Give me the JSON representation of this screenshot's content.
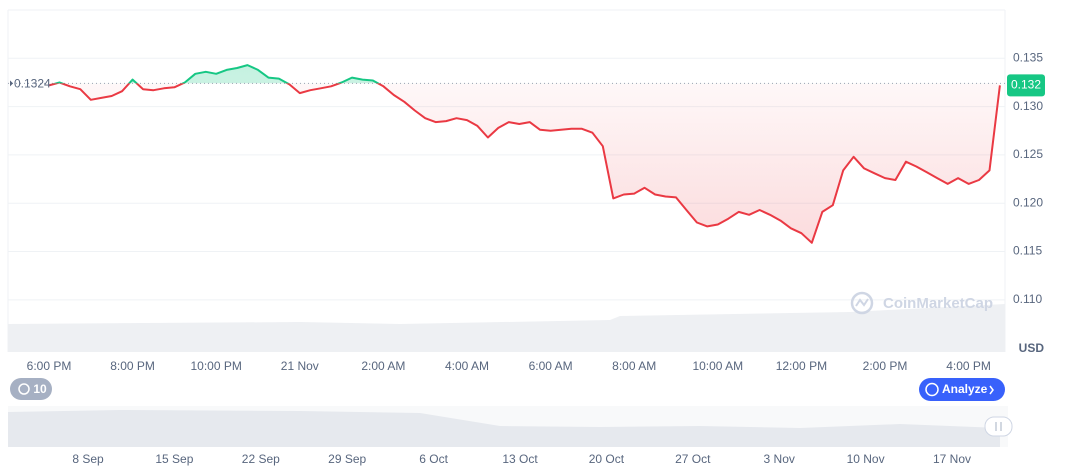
{
  "chart_data": {
    "type": "line",
    "categories": [
      "6:00 PM",
      null,
      null,
      null,
      null,
      null,
      null,
      null,
      "8:00 PM",
      null,
      null,
      null,
      null,
      null,
      null,
      null,
      "10:00 PM",
      null,
      null,
      null,
      null,
      null,
      null,
      null,
      "21 Nov",
      null,
      null,
      null,
      null,
      null,
      null,
      null,
      "2:00 AM",
      null,
      null,
      null,
      null,
      null,
      null,
      null,
      "4:00 AM",
      null,
      null,
      null,
      null,
      null,
      null,
      null,
      "6:00 AM",
      null,
      null,
      null,
      null,
      null,
      null,
      null,
      "8:00 AM",
      null,
      null,
      null,
      null,
      null,
      null,
      null,
      "10:00 AM",
      null,
      null,
      null,
      null,
      null,
      null,
      null,
      "12:00 PM",
      null,
      null,
      null,
      null,
      null,
      null,
      null,
      "2:00 PM",
      null,
      null,
      null,
      null,
      null,
      null,
      null,
      "4:00 PM",
      null,
      null,
      null
    ],
    "values": [
      0.1322,
      0.1325,
      0.1321,
      0.1318,
      0.1307,
      0.1309,
      0.1311,
      0.1316,
      0.1328,
      0.1318,
      0.1317,
      0.1319,
      0.132,
      0.1325,
      0.1334,
      0.1336,
      0.1334,
      0.1338,
      0.134,
      0.1343,
      0.1338,
      0.133,
      0.1329,
      0.1323,
      0.1314,
      0.1317,
      0.1319,
      0.1321,
      0.1325,
      0.133,
      0.1328,
      0.1327,
      0.1321,
      0.1312,
      0.1305,
      0.1296,
      0.1288,
      0.1284,
      0.1285,
      0.1288,
      0.1286,
      0.128,
      0.1268,
      0.1278,
      0.1284,
      0.1282,
      0.1284,
      0.1276,
      0.1275,
      0.1276,
      0.1277,
      0.1277,
      0.1273,
      0.1259,
      0.1205,
      0.1209,
      0.121,
      0.1216,
      0.1209,
      0.1207,
      0.1206,
      0.1193,
      0.118,
      0.1176,
      0.1178,
      0.1184,
      0.1191,
      0.1188,
      0.1193,
      0.1188,
      0.1182,
      0.1174,
      0.1169,
      0.1159,
      0.1191,
      0.1198,
      0.1234,
      0.1248,
      0.1236,
      0.1231,
      0.1226,
      0.1224,
      0.1243,
      0.1238,
      0.1232,
      0.1226,
      0.122,
      0.1226,
      0.122,
      0.1224,
      0.1234,
      0.1322
    ],
    "baseline": 0.1324,
    "current_price": {
      "value": 0.1322,
      "label": "0.132"
    },
    "colors": {
      "above": "#16c784",
      "below": "#ea3943"
    },
    "ylim": [
      0.1046,
      0.14
    ],
    "yticks": [
      0.135,
      {
        "value": 0.13,
        "label": "0.130"
      },
      0.125,
      {
        "value": 0.12,
        "label": "0.120"
      },
      0.115,
      {
        "value": 0.11,
        "label": "0.110"
      }
    ],
    "grid": true,
    "y_axis_unit": "USD",
    "watermark": "CoinMarketCap"
  },
  "navigator": {
    "range_badge": "10",
    "button": "Analyze",
    "labels": [
      "8 Sep",
      "15 Sep",
      "22 Sep",
      "29 Sep",
      "6 Oct",
      "13 Oct",
      "20 Oct",
      "27 Oct",
      "3 Nov",
      "10 Nov",
      "17 Nov"
    ]
  }
}
